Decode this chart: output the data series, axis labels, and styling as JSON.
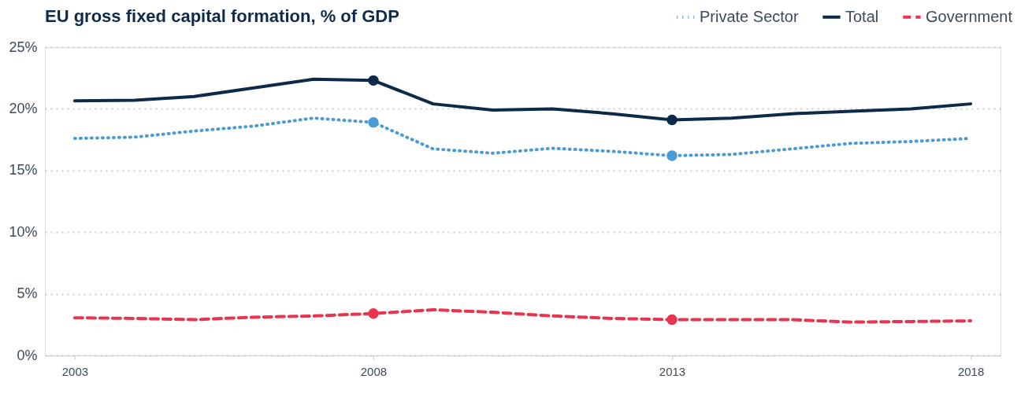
{
  "chart_data": {
    "type": "line",
    "title": "EU gross fixed capital formation, % of GDP",
    "x": [
      2003,
      2004,
      2005,
      2006,
      2007,
      2008,
      2009,
      2010,
      2011,
      2012,
      2013,
      2014,
      2015,
      2016,
      2017,
      2018
    ],
    "xlim": [
      2002.5,
      2018.5
    ],
    "xticks": [
      2003,
      2008,
      2013,
      2018
    ],
    "ylim": [
      0,
      25
    ],
    "yticks": [
      {
        "value": 0,
        "label": "0%"
      },
      {
        "value": 5,
        "label": "5%"
      },
      {
        "value": 10,
        "label": "10%"
      },
      {
        "value": 15,
        "label": "15%"
      },
      {
        "value": 20,
        "label": "20%"
      },
      {
        "value": 25,
        "label": "25%"
      }
    ],
    "grid": "y",
    "legend": "top right",
    "marker": "none",
    "series": [
      {
        "name": "Private Sector",
        "color": "#4a9ad8",
        "line_style": "dotted",
        "values": [
          17.6,
          17.7,
          18.2,
          18.6,
          19.25,
          18.9,
          16.75,
          16.4,
          16.8,
          16.55,
          16.2,
          16.3,
          16.75,
          17.2,
          17.35,
          17.6
        ]
      },
      {
        "name": "Total",
        "color": "#0d2a4a",
        "line_style": "solid",
        "values": [
          20.65,
          20.7,
          21.0,
          21.7,
          22.4,
          22.3,
          20.4,
          19.9,
          20.0,
          19.6,
          19.1,
          19.25,
          19.6,
          19.8,
          20.0,
          20.4
        ]
      },
      {
        "name": "Government",
        "color": "#e8344e",
        "line_style": "dashed",
        "values": [
          3.05,
          3.0,
          2.9,
          3.1,
          3.2,
          3.4,
          3.7,
          3.5,
          3.2,
          3.0,
          2.9,
          2.9,
          2.9,
          2.7,
          2.75,
          2.8
        ]
      },
      {
        "type": "scatter",
        "marker": "circle",
        "color": "#4a9ad8",
        "values": [
          null,
          null,
          null,
          null,
          null,
          18.9,
          null,
          null,
          null,
          null,
          16.2,
          null,
          null,
          null,
          null,
          null
        ]
      },
      {
        "type": "scatter",
        "marker": "circle",
        "color": "#0d2a4a",
        "values": [
          null,
          null,
          null,
          null,
          null,
          22.3,
          null,
          null,
          null,
          null,
          19.1,
          null,
          null,
          null,
          null,
          null
        ]
      },
      {
        "type": "scatter",
        "marker": "circle",
        "color": "#e8344e",
        "values": [
          null,
          null,
          null,
          null,
          null,
          3.4,
          null,
          null,
          null,
          null,
          2.9,
          null,
          null,
          null,
          null,
          null
        ]
      }
    ]
  }
}
